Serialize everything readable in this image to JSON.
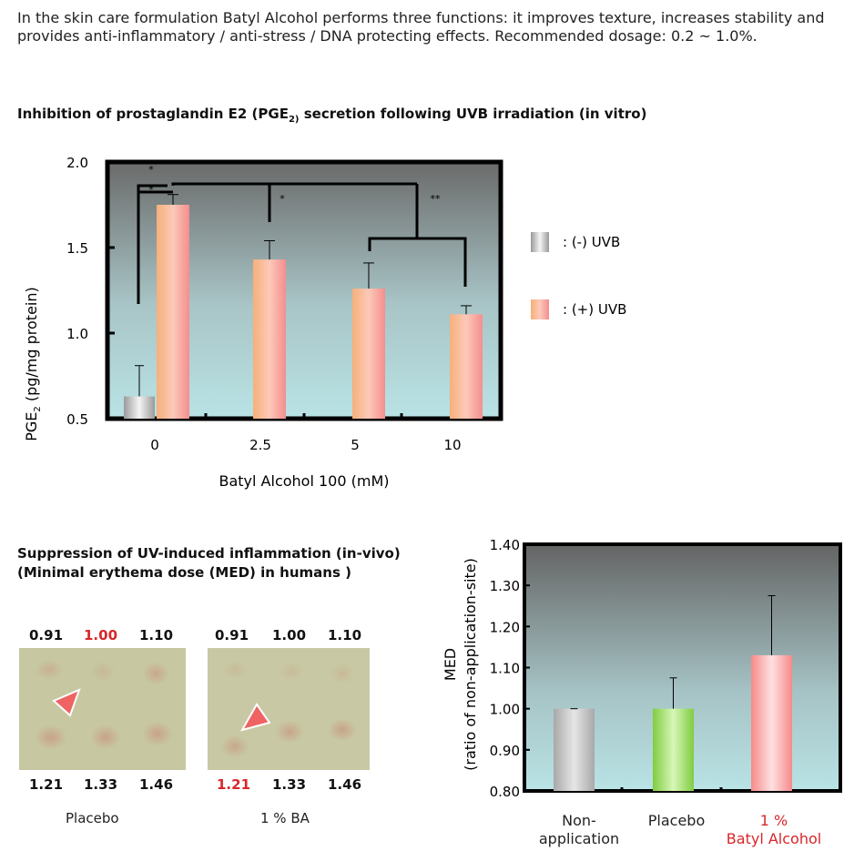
{
  "intro_text": "In the skin care formulation Batyl Alcohol performs three functions: it improves texture, increases stability and provides anti-inflammatory / anti-stress / DNA protecting effects. Recommended dosage: 0.2 ~ 1.0%.",
  "colors": {
    "red": "#d8262a",
    "bar_uvb_plus": "#f6a48a",
    "bar_uvb_minus": "#c8c8c8",
    "bar_placebo": "#8bd64e",
    "bar_ba": "#f9a0a0"
  },
  "chart_data": [
    {
      "type": "bar",
      "title_pre": "Inhibition of prostaglandin E2 (PGE",
      "title_sub": "2)",
      "title_post": " secretion following UVB irradiation (in vitro)",
      "ylabel_pre": "PGE",
      "ylabel_sub": "2",
      "ylabel_post": " (pg/mg protein)",
      "xlabel": "Batyl Alcohol 100 (mM)",
      "ylim": [
        0.5,
        2.0
      ],
      "yticks": [
        "2.0",
        "1.5",
        "1.0",
        "0.5"
      ],
      "yticks_values": [
        2.0,
        1.5,
        1.0,
        0.5
      ],
      "categories": [
        "0",
        "2.5",
        "5",
        "10"
      ],
      "series": [
        {
          "name": ": (-) UVB",
          "values": [
            0.63,
            null,
            null,
            null
          ],
          "errors": [
            0.18,
            null,
            null,
            null
          ]
        },
        {
          "name": ": (+) UVB",
          "values": [
            1.75,
            1.43,
            1.26,
            1.11
          ],
          "errors": [
            0.06,
            0.11,
            0.15,
            0.05
          ]
        }
      ],
      "significance": [
        "*",
        "*",
        "*",
        "**"
      ],
      "legend_position": "right",
      "grid": false
    },
    {
      "type": "bar",
      "ylabel_line1": "MED",
      "ylabel_line2": "(ratio of non-application-site)",
      "ylim": [
        0.8,
        1.4
      ],
      "yticks": [
        "1.40",
        "1.30",
        "1.20",
        "1.10",
        "1.00",
        "0.90",
        "0.80"
      ],
      "yticks_values": [
        1.4,
        1.3,
        1.2,
        1.1,
        1.0,
        0.9,
        0.8
      ],
      "categories": [
        {
          "line1": "Non-",
          "line2": "application"
        },
        {
          "line1": "Placebo",
          "line2": ""
        },
        {
          "line1": "1 %",
          "line2": "Batyl Alcohol"
        }
      ],
      "values": [
        1.0,
        1.0,
        1.13
      ],
      "errors": [
        0.0,
        0.075,
        0.145
      ],
      "grid": false
    }
  ],
  "med_section": {
    "title_line1": "Suppression of UV-induced inflammation (in-vivo)",
    "title_line2": "(Minimal erythema dose (MED) in humans )",
    "photos": [
      {
        "top_labels": [
          "0.91",
          "1.00",
          "1.10"
        ],
        "bottom_labels": [
          "1.21",
          "1.33",
          "1.46"
        ],
        "caption": "Placebo"
      },
      {
        "top_labels": [
          "0.91",
          "1.00",
          "1.10"
        ],
        "bottom_labels": [
          "1.21",
          "1.33",
          "1.46"
        ],
        "caption": "1 % BA"
      }
    ]
  }
}
